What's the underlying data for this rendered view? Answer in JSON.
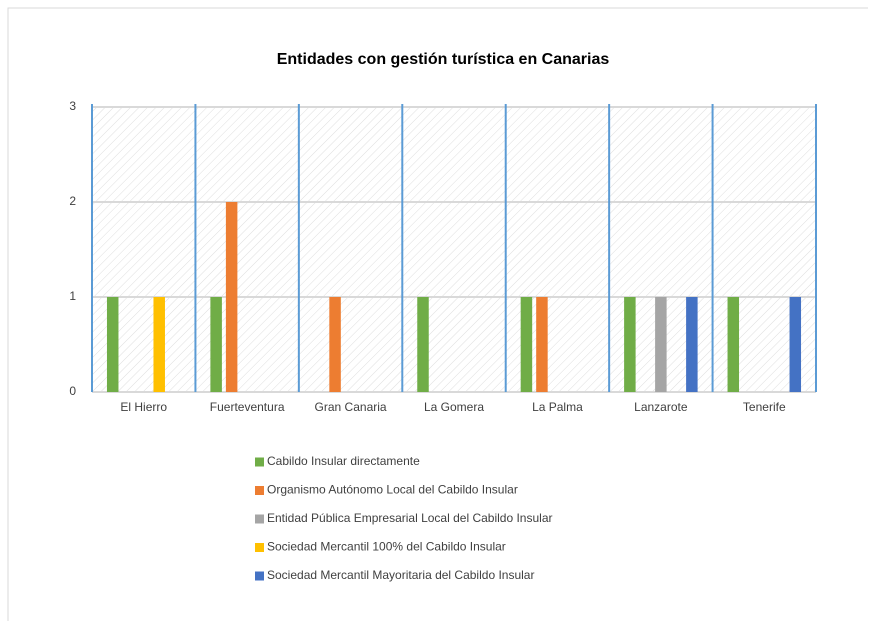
{
  "chart_data": {
    "type": "bar",
    "title": "Entidades con gestión turística en Canarias",
    "categories": [
      "El Hierro",
      "Fuerteventura",
      "Gran Canaria",
      "La Gomera",
      "La Palma",
      "Lanzarote",
      "Tenerife"
    ],
    "series": [
      {
        "name": "Cabildo Insular directamente",
        "color": "#70ad47",
        "values": [
          1,
          1,
          0,
          1,
          1,
          1,
          1
        ]
      },
      {
        "name": "Organismo Autónomo  Local del Cabildo Insular",
        "color": "#ed7d31",
        "values": [
          0,
          2,
          1,
          0,
          1,
          0,
          0
        ]
      },
      {
        "name": "Entidad Pública Empresarial Local del Cabildo Insular",
        "color": "#a5a5a5",
        "values": [
          0,
          0,
          0,
          0,
          0,
          1,
          0
        ]
      },
      {
        "name": "Sociedad Mercantil 100% del Cabildo Insular",
        "color": "#ffc000",
        "values": [
          1,
          0,
          0,
          0,
          0,
          0,
          0
        ]
      },
      {
        "name": "Sociedad Mercantil Mayoritaria del Cabildo Insular",
        "color": "#4472c4",
        "values": [
          0,
          0,
          0,
          0,
          0,
          1,
          1
        ]
      }
    ],
    "ylim": [
      0,
      3
    ],
    "yticks": [
      0,
      1,
      2,
      3
    ],
    "grid": true,
    "legend": "bottom"
  }
}
